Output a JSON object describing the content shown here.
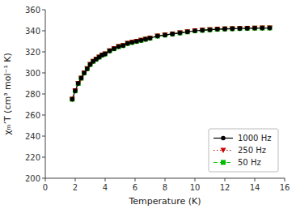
{
  "chart_data": {
    "type": "line",
    "xlabel": "Temperature (K)",
    "ylabel": "χₘ’T (cm³ mol⁻¹ K)",
    "x": [
      1.8,
      2.0,
      2.2,
      2.4,
      2.6,
      2.8,
      3.0,
      3.2,
      3.4,
      3.6,
      3.8,
      4.0,
      4.3,
      4.6,
      4.9,
      5.2,
      5.5,
      5.8,
      6.1,
      6.4,
      6.7,
      7.0,
      7.5,
      8.0,
      8.5,
      9.0,
      9.5,
      10.0,
      10.5,
      11.0,
      11.5,
      12.0,
      12.5,
      13.0,
      13.5,
      14.0,
      14.5,
      15.0
    ],
    "series": [
      {
        "name": "50 Hz",
        "color": "#00bb00",
        "marker": "square",
        "line_style": "dashed",
        "values": [
          275,
          283,
          290,
          295,
          300,
          304,
          308,
          311,
          313,
          315,
          317,
          318,
          321,
          323,
          325,
          326,
          328,
          329,
          330,
          331,
          332,
          333,
          335,
          336,
          337,
          338,
          339,
          340,
          340.5,
          341,
          341.5,
          341.8,
          342,
          342.2,
          342.4,
          342.5,
          342.6,
          342.7
        ]
      },
      {
        "name": "250 Hz",
        "color": "#cc0000",
        "marker": "triangle-down",
        "line_style": "dotted",
        "values": [
          275,
          283,
          290,
          295,
          300,
          304,
          308,
          311,
          313,
          315,
          317,
          318,
          321,
          323,
          325,
          326,
          328,
          329,
          330,
          331,
          332,
          333,
          335,
          336,
          337,
          338,
          339,
          340,
          340.5,
          341,
          341.5,
          341.8,
          342,
          342.2,
          342.4,
          342.5,
          342.6,
          342.7
        ]
      },
      {
        "name": "1000 Hz",
        "color": "black",
        "marker": "circle",
        "line_style": "solid",
        "values": [
          275,
          283,
          290,
          295,
          300,
          304,
          308,
          311,
          313,
          315,
          317,
          318,
          321,
          323,
          325,
          326,
          328,
          329,
          330,
          331,
          332,
          333,
          335,
          336,
          337,
          338,
          339,
          340,
          340.5,
          341,
          341.5,
          341.8,
          342,
          342.2,
          342.4,
          342.5,
          342.6,
          342.7
        ]
      }
    ],
    "xlim": [
      0,
      16
    ],
    "ylim": [
      200,
      360
    ],
    "xticks": [
      0,
      2,
      4,
      6,
      8,
      10,
      12,
      14,
      16
    ],
    "yticks": [
      200,
      220,
      240,
      260,
      280,
      300,
      320,
      340,
      360
    ],
    "grid": false,
    "legend": "lower right"
  }
}
